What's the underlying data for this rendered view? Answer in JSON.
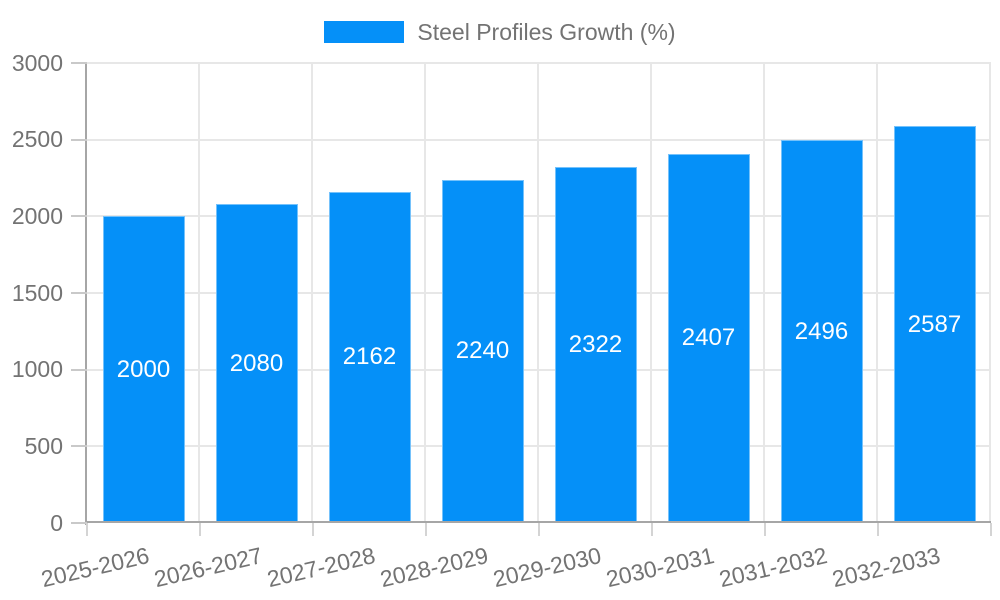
{
  "legend": {
    "label": "Steel Profiles Growth (%)"
  },
  "colors": {
    "bar": "#0590f8",
    "grid": "#e7e7e7",
    "axis": "#a6a6a6",
    "tick_y": "#c9c9c9",
    "tick_x": "#d4d4d4",
    "axis_text": "#737373",
    "value_text": "#ffffff",
    "background": "#ffffff"
  },
  "chart_data": {
    "type": "bar",
    "title": "",
    "legend_entries": [
      "Steel Profiles Growth (%)"
    ],
    "legend_position": "top",
    "categories": [
      "2025-2026",
      "2026-2027",
      "2027-2028",
      "2028-2029",
      "2029-2030",
      "2030-2031",
      "2031-2032",
      "2032-2033"
    ],
    "values": [
      2000,
      2080,
      2162,
      2240,
      2322,
      2407,
      2496,
      2587
    ],
    "bar_labels": [
      2000,
      2080,
      2162,
      2240,
      2322,
      2407,
      2496,
      2587
    ],
    "xlabel": "",
    "ylabel": "",
    "ylim": [
      0,
      3000
    ],
    "yticks": [
      0,
      500,
      1000,
      1500,
      2000,
      2500,
      3000
    ],
    "grid": true
  }
}
